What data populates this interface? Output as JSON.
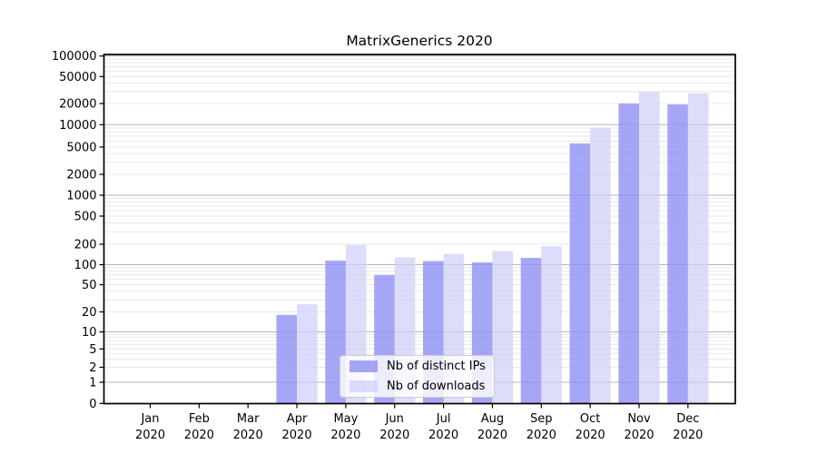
{
  "chart_data": {
    "type": "bar",
    "title": "MatrixGenerics 2020",
    "categories": [
      "Jan 2020",
      "Feb 2020",
      "Mar 2020",
      "Apr 2020",
      "May 2020",
      "Jun 2020",
      "Jul 2020",
      "Aug 2020",
      "Sep 2020",
      "Oct 2020",
      "Nov 2020",
      "Dec 2020"
    ],
    "series": [
      {
        "name": "Nb of distinct IPs",
        "color_hex": "#a7a7f7",
        "color_rgba": "rgba(144,144,245,0.8)",
        "values": [
          0,
          0,
          0,
          18,
          115,
          70,
          113,
          108,
          126,
          5600,
          20000,
          19400
        ]
      },
      {
        "name": "Nb of downloads",
        "color_hex": "#d9d9fb",
        "color_rgba": "rgba(206,206,250,0.72)",
        "values": [
          0,
          0,
          0,
          26,
          195,
          128,
          144,
          159,
          186,
          9100,
          29500,
          28400
        ]
      }
    ],
    "y_axis": {
      "scale": "symlog",
      "ticks": [
        0,
        1,
        2,
        5,
        10,
        20,
        50,
        100,
        200,
        500,
        1000,
        2000,
        5000,
        10000,
        20000,
        50000,
        100000
      ],
      "ylim": [
        0,
        100000
      ]
    },
    "x_axis": {
      "tick_label_lines": 2
    },
    "legend": {
      "position": "lower center"
    },
    "grid": {
      "horizontal": true,
      "major_color": "#b5b5b5",
      "minor_color": "#e8e8e8"
    },
    "colors": {
      "axis": "#000000",
      "text": "#000000",
      "background": "#ffffff"
    }
  }
}
